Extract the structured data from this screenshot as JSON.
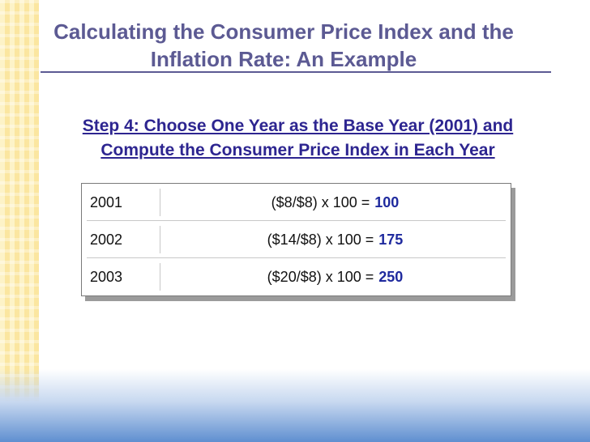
{
  "slide": {
    "title_line1": "Calculating the Consumer Price Index and the",
    "title_line2": "Inflation Rate: An Example",
    "subtitle_line1": "Step 4:  Choose One Year as the Base Year (2001) and",
    "subtitle_line2": "Compute the Consumer Price Index in Each Year"
  },
  "table": {
    "rows": [
      {
        "year": "2001",
        "formula": "($8/$8) x 100 =",
        "result": "100"
      },
      {
        "year": "2002",
        "formula": "($14/$8) x 100 =",
        "result": "175"
      },
      {
        "year": "2003",
        "formula": "($20/$8) x 100 =",
        "result": "250"
      }
    ]
  },
  "colors": {
    "title": "#5c5a93",
    "subtitle": "#2d2590",
    "result": "#1f2a9e"
  }
}
